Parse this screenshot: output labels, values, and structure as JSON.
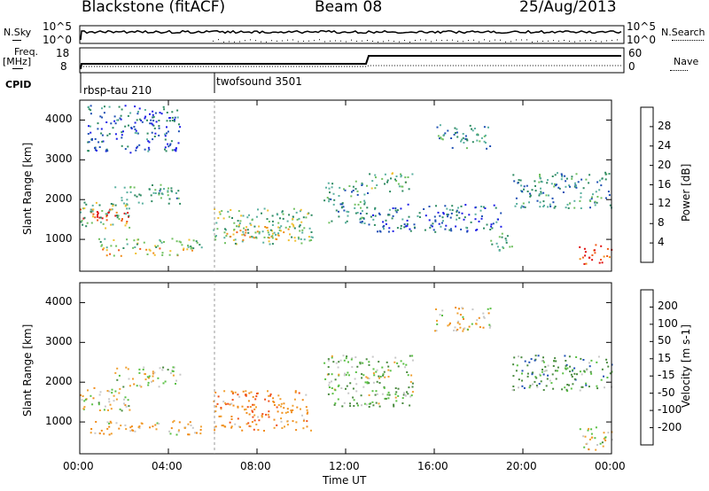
{
  "header": {
    "radar": "Blackstone (fitACF)",
    "beam": "Beam 08",
    "date": "25/Aug/2013"
  },
  "top_panels": {
    "nsky_label": "N.Sky",
    "nsky_ticks": [
      "10^5",
      "10^0"
    ],
    "nsearch_label": "N.Search",
    "nsearch_ticks": [
      "10^5",
      "10^0"
    ],
    "freq_label": "Freq.",
    "freq_unit": "[MHz]",
    "freq_ticks": [
      "18",
      "8"
    ],
    "nave_label": "Nave",
    "nave_ticks": [
      "60",
      "0"
    ],
    "cpid_label": "CPID",
    "cpid_programs": [
      {
        "name": "rbsp-tau 210",
        "start_hour": 0
      },
      {
        "name": "twofsound 3501",
        "start_hour": 6
      }
    ]
  },
  "colors": {
    "power": [
      "#1e1ee6",
      "#1e4fb4",
      "#2e8a62",
      "#5ab0a0",
      "#70c060",
      "#f0c030",
      "#f08c1a",
      "#f05a18",
      "#e01010"
    ],
    "velocity": [
      "#1a1ab4",
      "#1e4fb4",
      "#4a8a40",
      "#5ac044",
      "#c8c8c8",
      "#f0a030",
      "#f08c1a",
      "#f05018",
      "#e01010"
    ],
    "ground": "#c8c8c8"
  },
  "chart_data": [
    {
      "type": "heatmap",
      "name": "power",
      "ylabel": "Slant Range [km]",
      "xlabel": "",
      "xlim": [
        0,
        24
      ],
      "ylim": [
        200,
        4500
      ],
      "x_ticks": [
        "00:00",
        "04:00",
        "08:00",
        "12:00",
        "16:00",
        "20:00",
        "00:00"
      ],
      "y_ticks": [
        1000,
        2000,
        3000,
        4000
      ],
      "colorbar_label": "Power [dB]",
      "colorbar_ticks": [
        4,
        8,
        12,
        16,
        20,
        24,
        28
      ],
      "colorbar_range": [
        0,
        32
      ],
      "regions": [
        {
          "t0": 0.0,
          "t1": 2.3,
          "r0": 1450,
          "r1": 1800,
          "level": 28
        },
        {
          "t0": 0.0,
          "t1": 2.3,
          "r0": 1300,
          "r1": 1950,
          "level": 14
        },
        {
          "t0": 0.3,
          "t1": 5.5,
          "r0": 800,
          "r1": 1050,
          "level": 14
        },
        {
          "t0": 1.0,
          "t1": 5.2,
          "r0": 600,
          "r1": 800,
          "level": 22
        },
        {
          "t0": 1.5,
          "t1": 4.5,
          "r0": 1900,
          "r1": 2400,
          "level": 12
        },
        {
          "t0": 0.3,
          "t1": 4.5,
          "r0": 3200,
          "r1": 4400,
          "level": 6
        },
        {
          "t0": 6.0,
          "t1": 10.5,
          "r0": 900,
          "r1": 1800,
          "level": 14
        },
        {
          "t0": 6.5,
          "t1": 9.5,
          "r0": 1000,
          "r1": 1400,
          "level": 20
        },
        {
          "t0": 11.0,
          "t1": 13.0,
          "r0": 1400,
          "r1": 2500,
          "level": 10
        },
        {
          "t0": 13.0,
          "t1": 15.0,
          "r0": 2200,
          "r1": 2700,
          "level": 14
        },
        {
          "t0": 13.0,
          "t1": 19.0,
          "r0": 1200,
          "r1": 1900,
          "level": 6
        },
        {
          "t0": 16.0,
          "t1": 18.5,
          "r0": 3300,
          "r1": 3900,
          "level": 10
        },
        {
          "t0": 19.5,
          "t1": 24.0,
          "r0": 1800,
          "r1": 2700,
          "level": 10
        },
        {
          "t0": 22.5,
          "t1": 24.0,
          "r0": 400,
          "r1": 900,
          "level": 28
        },
        {
          "t0": 18.5,
          "t1": 19.5,
          "r0": 700,
          "r1": 1200,
          "level": 12
        }
      ]
    },
    {
      "type": "heatmap",
      "name": "velocity",
      "ylabel": "Slant Range [km]",
      "xlabel": "Time UT",
      "xlim": [
        0,
        24
      ],
      "ylim": [
        200,
        4500
      ],
      "x_ticks": [
        "00:00",
        "04:00",
        "08:00",
        "12:00",
        "16:00",
        "20:00",
        "00:00"
      ],
      "y_ticks": [
        1000,
        2000,
        3000,
        4000
      ],
      "colorbar_label": "Velocity [m s-1]",
      "colorbar_ticks": [
        200,
        100,
        50,
        15,
        -15,
        -50,
        -100,
        -200
      ],
      "regions": [
        {
          "t0": 0.0,
          "t1": 2.3,
          "r0": 1300,
          "r1": 1900,
          "vel": 0
        },
        {
          "t0": 0.3,
          "t1": 5.5,
          "r0": 700,
          "r1": 1050,
          "vel": -40
        },
        {
          "t0": 1.5,
          "t1": 4.5,
          "r0": 1900,
          "r1": 2400,
          "vel": 0
        },
        {
          "t0": 6.0,
          "t1": 10.5,
          "r0": 800,
          "r1": 1800,
          "vel": -70
        },
        {
          "t0": 11.0,
          "t1": 15.0,
          "r0": 1400,
          "r1": 2700,
          "vel": 30
        },
        {
          "t0": 16.0,
          "t1": 18.5,
          "r0": 3300,
          "r1": 3900,
          "vel": -30
        },
        {
          "t0": 19.5,
          "t1": 24.0,
          "r0": 1800,
          "r1": 2700,
          "vel": 60
        },
        {
          "t0": 22.5,
          "t1": 24.0,
          "r0": 300,
          "r1": 900,
          "vel": 0
        }
      ]
    }
  ]
}
